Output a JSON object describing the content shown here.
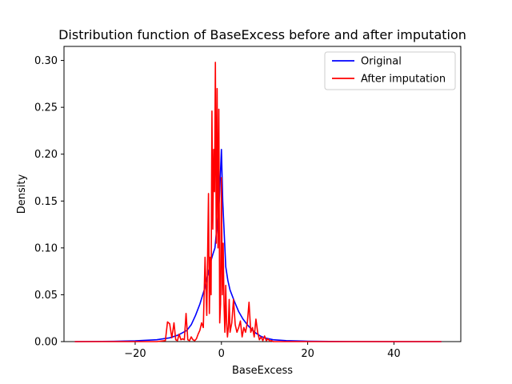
{
  "chart_data": {
    "type": "line",
    "title": "Distribution function of BaseExcess before and after imputation",
    "xlabel": "BaseExcess",
    "ylabel": "Density",
    "xlim": [
      -36.5,
      55.5
    ],
    "ylim": [
      0,
      0.3
    ],
    "xticks": [
      -20,
      0,
      20,
      40
    ],
    "xtick_labels": [
      "−20",
      "0",
      "20",
      "40"
    ],
    "yticks": [
      0.0,
      0.05,
      0.1,
      0.15,
      0.2,
      0.25,
      0.3
    ],
    "ytick_labels": [
      "0.00",
      "0.05",
      "0.10",
      "0.15",
      "0.20",
      "0.25",
      "0.30"
    ],
    "grid": false,
    "legend_position": "top-right",
    "series": [
      {
        "name": "Original",
        "color": "#0000ff",
        "x": [
          -34,
          -25,
          -20,
          -15,
          -12,
          -10,
          -8,
          -7,
          -6,
          -5,
          -4,
          -3,
          -2.5,
          -2,
          -1.5,
          -1,
          -0.5,
          0,
          0.3,
          0.6,
          1,
          1.5,
          2,
          3,
          4,
          5,
          6,
          7,
          8,
          9,
          10,
          12,
          15,
          20,
          25,
          30,
          40,
          51
        ],
        "y": [
          0,
          0.0003,
          0.0008,
          0.002,
          0.004,
          0.007,
          0.012,
          0.018,
          0.028,
          0.04,
          0.055,
          0.075,
          0.085,
          0.093,
          0.1,
          0.125,
          0.15,
          0.205,
          0.15,
          0.12,
          0.08,
          0.065,
          0.055,
          0.043,
          0.032,
          0.024,
          0.018,
          0.013,
          0.009,
          0.006,
          0.004,
          0.002,
          0.001,
          0.0004,
          0.0002,
          0.0001,
          0,
          0
        ]
      },
      {
        "name": "After imputation",
        "color": "#ff0000",
        "x": [
          -34,
          -20,
          -15,
          -13,
          -12.5,
          -12,
          -11.5,
          -11,
          -10.6,
          -10.2,
          -9.8,
          -9.4,
          -9,
          -8.6,
          -8.2,
          -7.8,
          -7.4,
          -7,
          -6.6,
          -6.2,
          -5.8,
          -5.4,
          -5,
          -4.6,
          -4.2,
          -3.8,
          -3.4,
          -3,
          -2.8,
          -2.6,
          -2.4,
          -2.2,
          -2,
          -1.8,
          -1.6,
          -1.4,
          -1.2,
          -1,
          -0.8,
          -0.6,
          -0.4,
          -0.2,
          0,
          0.2,
          0.4,
          0.6,
          0.8,
          1,
          1.2,
          1.4,
          1.6,
          1.8,
          2,
          2.4,
          2.8,
          3.2,
          3.6,
          4,
          4.4,
          4.8,
          5.2,
          5.6,
          6,
          6.4,
          6.8,
          7.2,
          7.6,
          8,
          8.4,
          8.8,
          9.2,
          9.6,
          10,
          10.4,
          10.8,
          11.2,
          11.6,
          12,
          13,
          15,
          20,
          51
        ],
        "y": [
          0,
          0,
          0,
          0.001,
          0.021,
          0.019,
          0.004,
          0.02,
          0.002,
          0.001,
          0.008,
          0.002,
          0.003,
          0.002,
          0.03,
          0.002,
          0.001,
          0.005,
          0.002,
          0.001,
          0.003,
          0.008,
          0.012,
          0.02,
          0.015,
          0.09,
          0.028,
          0.158,
          0.03,
          0.09,
          0.05,
          0.246,
          0.12,
          0.205,
          0.16,
          0.298,
          0.105,
          0.27,
          0.1,
          0.248,
          0.02,
          0.04,
          0.175,
          0.05,
          0.105,
          0.04,
          0.01,
          0.06,
          0.02,
          0.005,
          0.015,
          0.045,
          0.01,
          0.02,
          0.045,
          0.018,
          0.01,
          0.015,
          0.022,
          0.005,
          0.015,
          0.01,
          0.02,
          0.042,
          0.01,
          0.015,
          0.005,
          0.024,
          0.01,
          0.002,
          0.005,
          0.001,
          0.006,
          0.001,
          0.003,
          0.0005,
          0.001,
          0,
          0,
          0,
          0,
          0
        ]
      }
    ]
  }
}
